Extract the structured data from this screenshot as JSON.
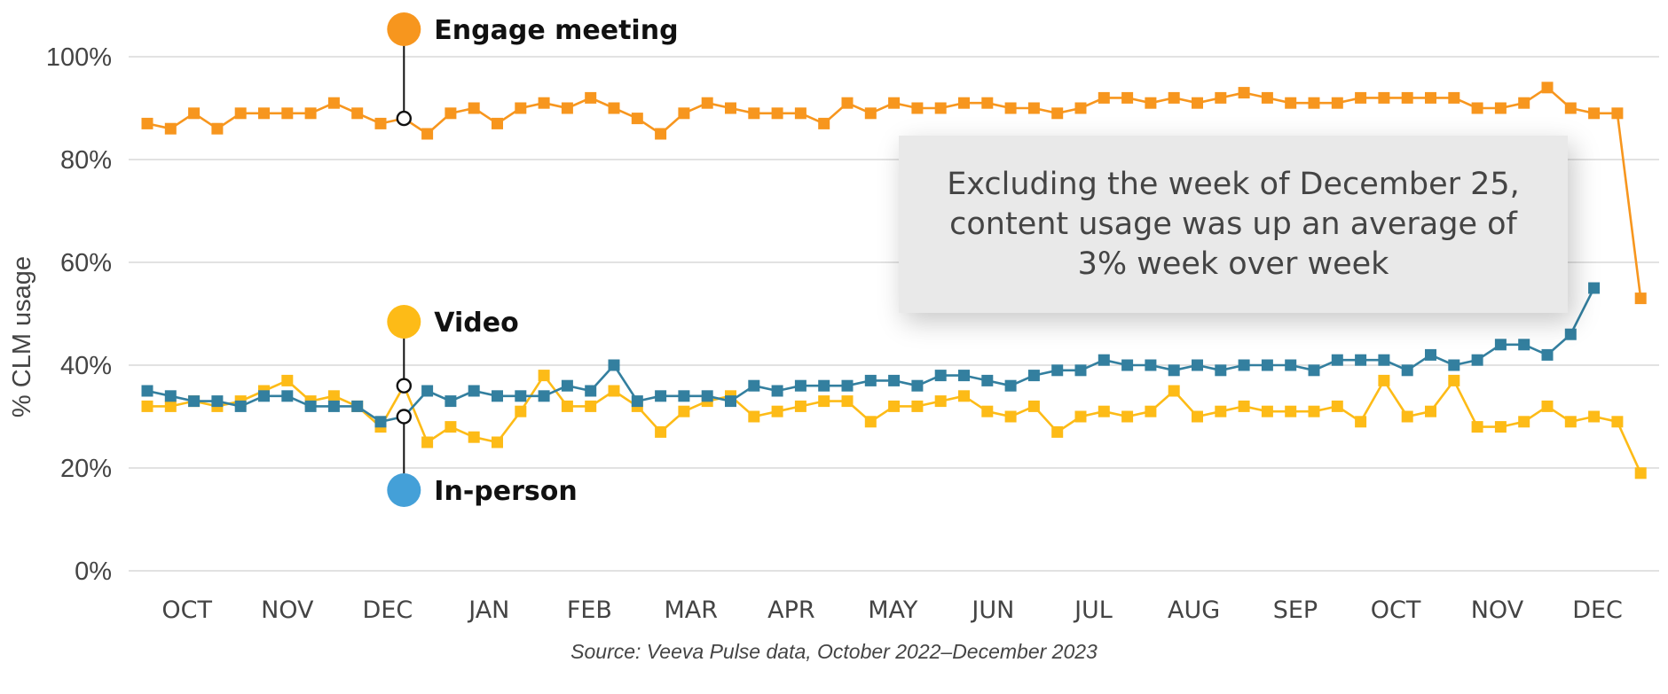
{
  "chart_data": {
    "type": "line",
    "title": "",
    "ylabel": "% CLM usage",
    "xlabel": "",
    "ylim": [
      0,
      100
    ],
    "yticks": [
      "0%",
      "20%",
      "40%",
      "60%",
      "80%",
      "100%"
    ],
    "ytick_values": [
      0,
      20,
      40,
      60,
      80,
      100
    ],
    "grid": true,
    "x_unit": "week",
    "x_month_ticks": [
      {
        "label": "OCT",
        "week": 1.7
      },
      {
        "label": "NOV",
        "week": 6.0
      },
      {
        "label": "DEC",
        "week": 10.3
      },
      {
        "label": "JAN",
        "week": 14.65
      },
      {
        "label": "FEB",
        "week": 18.95
      },
      {
        "label": "MAR",
        "week": 23.3
      },
      {
        "label": "APR",
        "week": 27.6
      },
      {
        "label": "MAY",
        "week": 31.95
      },
      {
        "label": "JUN",
        "week": 36.25
      },
      {
        "label": "JUL",
        "week": 40.55
      },
      {
        "label": "AUG",
        "week": 44.85
      },
      {
        "label": "SEP",
        "week": 49.2
      },
      {
        "label": "OCT",
        "week": 53.5
      },
      {
        "label": "NOV",
        "week": 57.85
      },
      {
        "label": "DEC",
        "week": 62.15
      }
    ],
    "series": [
      {
        "name": "Engage meeting",
        "color": "#f7961e",
        "values": [
          87,
          86,
          89,
          86,
          89,
          89,
          89,
          89,
          91,
          89,
          87,
          88,
          85,
          89,
          90,
          87,
          90,
          91,
          90,
          92,
          90,
          88,
          85,
          89,
          91,
          90,
          89,
          89,
          89,
          87,
          91,
          89,
          91,
          90,
          90,
          91,
          91,
          90,
          90,
          89,
          90,
          92,
          92,
          91,
          92,
          91,
          92,
          93,
          92,
          91,
          91,
          91,
          92,
          92,
          92,
          92,
          92,
          90,
          90,
          91,
          94,
          90,
          89,
          89,
          53
        ]
      },
      {
        "name": "Video",
        "color": "#fdbb17",
        "values": [
          32,
          32,
          33,
          32,
          33,
          35,
          37,
          33,
          34,
          32,
          28,
          36,
          25,
          28,
          26,
          25,
          31,
          38,
          32,
          32,
          35,
          32,
          27,
          31,
          33,
          34,
          30,
          31,
          32,
          33,
          33,
          29,
          32,
          32,
          33,
          34,
          31,
          30,
          32,
          27,
          30,
          31,
          30,
          31,
          35,
          30,
          31,
          32,
          31,
          31,
          31,
          32,
          29,
          37,
          30,
          31,
          37,
          28,
          28,
          29,
          32,
          29,
          30,
          29,
          19
        ]
      },
      {
        "name": "In-person",
        "color": "#337f9f",
        "legend_color": "#44a0d8",
        "values": [
          35,
          34,
          33,
          33,
          32,
          34,
          34,
          32,
          32,
          32,
          29,
          30,
          35,
          33,
          35,
          34,
          34,
          34,
          36,
          35,
          40,
          33,
          34,
          34,
          34,
          33,
          36,
          35,
          36,
          36,
          36,
          37,
          37,
          36,
          38,
          38,
          37,
          36,
          38,
          39,
          39,
          41,
          40,
          40,
          39,
          40,
          39,
          40,
          40,
          40,
          39,
          41,
          41,
          41,
          39,
          42,
          40,
          41,
          44,
          44,
          42,
          46,
          55
        ]
      }
    ],
    "legend": {
      "placement": "inline-annotations",
      "anchor_week": 11,
      "items": [
        {
          "label": "Engage meeting",
          "series": 0,
          "position": "top",
          "color": "#f7961e"
        },
        {
          "label": "Video",
          "series": 1,
          "position": "above",
          "color": "#fdbb17"
        },
        {
          "label": "In-person",
          "series": 2,
          "position": "below",
          "color": "#44a0d8"
        }
      ]
    },
    "annotation": "Excluding the week of December 25, content usage was up an average of 3% week over week",
    "source": "Source: Veeva Pulse data, October 2022–December 2023"
  }
}
